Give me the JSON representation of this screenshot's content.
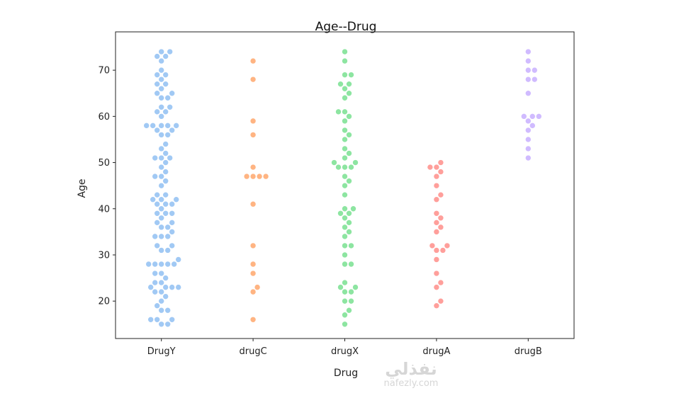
{
  "chart_data": {
    "type": "scatter",
    "subtype": "swarm",
    "title": "Age--Drug",
    "xlabel": "Drug",
    "ylabel": "Age",
    "ylim": [
      11.9,
      78.3
    ],
    "yticks": [
      20,
      30,
      40,
      50,
      60,
      70
    ],
    "grid": false,
    "categories": [
      "DrugY",
      "drugC",
      "drugX",
      "drugA",
      "drugB"
    ],
    "colors": [
      "#a1c9f4",
      "#ffb482",
      "#8de5a1",
      "#ff9f9b",
      "#d0bbff"
    ],
    "series": [
      {
        "category": "DrugY",
        "values": [
          74,
          74,
          73,
          73,
          72,
          70,
          69,
          69,
          68,
          67,
          67,
          66,
          65,
          65,
          64,
          64,
          62,
          62,
          61,
          61,
          60,
          58,
          58,
          58,
          58,
          58,
          57,
          57,
          56,
          56,
          54,
          53,
          52,
          51,
          51,
          51,
          50,
          49,
          48,
          47,
          47,
          46,
          45,
          43,
          43,
          42,
          42,
          42,
          41,
          41,
          41,
          40,
          39,
          39,
          39,
          38,
          37,
          37,
          36,
          36,
          35,
          34,
          34,
          34,
          32,
          32,
          31,
          31,
          29,
          28,
          28,
          28,
          28,
          28,
          26,
          26,
          25,
          24,
          24,
          23,
          23,
          23,
          23,
          22,
          22,
          21,
          20,
          19,
          18,
          18,
          16,
          16,
          16,
          15,
          15
        ]
      },
      {
        "category": "drugC",
        "values": [
          72,
          68,
          59,
          56,
          49,
          47,
          47,
          47,
          47,
          41,
          32,
          28,
          26,
          23,
          22,
          16
        ]
      },
      {
        "category": "drugX",
        "values": [
          74,
          72,
          69,
          69,
          67,
          67,
          66,
          65,
          64,
          61,
          61,
          60,
          59,
          57,
          56,
          55,
          53,
          52,
          51,
          50,
          50,
          49,
          49,
          49,
          47,
          46,
          45,
          43,
          40,
          40,
          39,
          39,
          38,
          37,
          36,
          35,
          34,
          32,
          32,
          30,
          28,
          28,
          24,
          23,
          23,
          22,
          22,
          20,
          20,
          18,
          17,
          15
        ]
      },
      {
        "category": "drugA",
        "values": [
          50,
          49,
          49,
          48,
          47,
          45,
          43,
          42,
          39,
          38,
          37,
          36,
          35,
          32,
          32,
          31,
          31,
          29,
          26,
          24,
          23,
          20,
          19
        ]
      },
      {
        "category": "drugB",
        "values": [
          74,
          72,
          70,
          70,
          68,
          68,
          65,
          60,
          60,
          60,
          59,
          58,
          57,
          55,
          53,
          51
        ]
      }
    ]
  },
  "watermark": {
    "arabic": "نفذلي",
    "latin": "nafezly.com"
  }
}
